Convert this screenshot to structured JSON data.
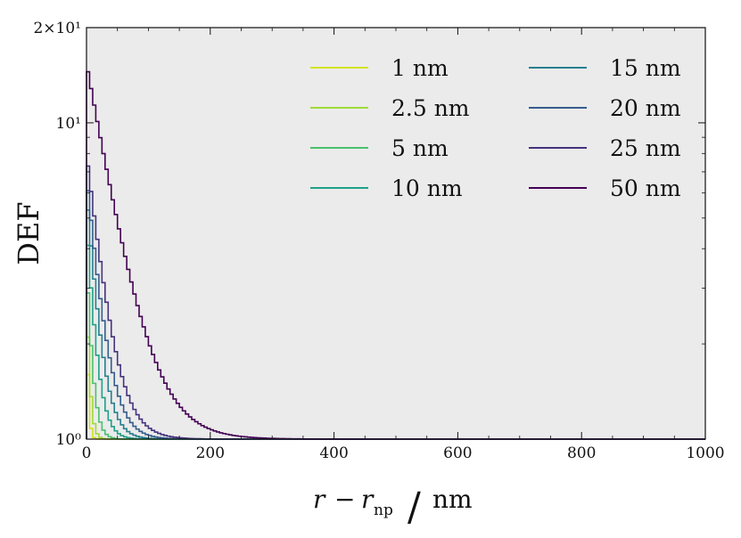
{
  "chart_data": {
    "type": "line",
    "title": "",
    "xlabel": "r − r_np / nm",
    "xlabel_parts": {
      "r": "r",
      "minus": "−",
      "rnp": "r",
      "rnp_sub": "np",
      "slash": "/",
      "unit": "nm"
    },
    "ylabel": "DEF",
    "xlim": [
      0,
      1000
    ],
    "ylim": [
      1,
      20
    ],
    "yscale": "log",
    "xticks": [
      0,
      200,
      400,
      600,
      800,
      1000
    ],
    "xtick_labels": [
      "0",
      "200",
      "400",
      "600",
      "800",
      "1000"
    ],
    "ytick_labels": {
      "bottom": "10⁰",
      "mid": "10¹",
      "top": "2×10¹"
    },
    "grid": false,
    "legend_position": "top-right",
    "legend_columns": 2,
    "background": "#ebebeb",
    "series": [
      {
        "name": "1 nm",
        "color": "#d2e21b",
        "peak": 1.6,
        "decay": 2.5
      },
      {
        "name": "2.5 nm",
        "color": "#a0da39",
        "peak": 2.1,
        "decay": 4.5
      },
      {
        "name": "5 nm",
        "color": "#4ac16d",
        "peak": 2.9,
        "decay": 7.5
      },
      {
        "name": "10 nm",
        "color": "#1fa187",
        "peak": 4.1,
        "decay": 11.5
      },
      {
        "name": "15 nm",
        "color": "#277f8e",
        "peak": 5.3,
        "decay": 15.0
      },
      {
        "name": "20 nm",
        "color": "#365c8d",
        "peak": 6.1,
        "decay": 19.0
      },
      {
        "name": "25 nm",
        "color": "#46327e",
        "peak": 7.3,
        "decay": 23.0
      },
      {
        "name": "50 nm",
        "color": "#440154",
        "peak": 14.5,
        "decay": 38.0
      }
    ]
  }
}
